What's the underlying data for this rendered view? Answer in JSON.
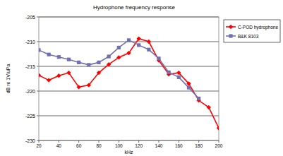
{
  "chart_data": {
    "type": "line",
    "title": "Hydrophone frequency response",
    "x_label": "kHz",
    "y_label": "dB re 1V/uPa",
    "xlim": [
      20,
      200
    ],
    "xticks": [
      20,
      40,
      60,
      80,
      100,
      120,
      140,
      160,
      180,
      200
    ],
    "ylim": [
      -230,
      -205
    ],
    "yticks": [
      -230,
      -225,
      -220,
      -215,
      -210,
      -205
    ],
    "grid": true,
    "legend": "right",
    "series": [
      {
        "name": "C-POD hydrophone",
        "color": "#ff0000",
        "marker": "diamond",
        "x": [
          20,
          30,
          40,
          50,
          60,
          70,
          80,
          90,
          100,
          110,
          120,
          130,
          140,
          150,
          160,
          170,
          180,
          190,
          200
        ],
        "values": [
          -216.8,
          -217.8,
          -216.9,
          -216.3,
          -219.2,
          -218.8,
          -216.3,
          -214.6,
          -213.2,
          -212.3,
          -209.4,
          -210.0,
          -213.8,
          -216.6,
          -216.3,
          -218.5,
          -221.9,
          -223.3,
          -227.5
        ]
      },
      {
        "name": "B&K 8103",
        "color": "#7070b0",
        "marker": "square",
        "x": [
          20,
          30,
          40,
          50,
          60,
          70,
          80,
          90,
          100,
          110,
          120,
          130,
          140,
          150,
          160,
          170,
          180
        ],
        "values": [
          -211.7,
          -212.6,
          -213.1,
          -213.6,
          -214.2,
          -214.7,
          -214.2,
          -213.0,
          -211.2,
          -209.7,
          -210.7,
          -211.6,
          -213.4,
          -216.2,
          -217.2,
          -219.3,
          -221.5
        ]
      }
    ]
  }
}
